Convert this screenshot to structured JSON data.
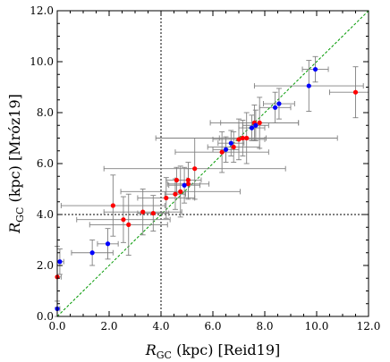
{
  "chart_data": {
    "type": "scatter",
    "xlabel": {
      "main": "R",
      "sub": "GC",
      "rest": " (kpc) [Reid19]"
    },
    "ylabel": {
      "main": "R",
      "sub": "GC",
      "rest": " (kpc) [Mróz19]"
    },
    "xlim": [
      0,
      12
    ],
    "ylim": [
      0,
      12
    ],
    "x_ticks": [
      "0.0",
      "2.0",
      "4.0",
      "6.0",
      "8.0",
      "10.0",
      "12.0"
    ],
    "y_ticks": [
      "0.0",
      "2.0",
      "4.0",
      "6.0",
      "8.0",
      "10.0",
      "12.0"
    ],
    "reference_lines": {
      "vertical_x": 4.0,
      "horizontal_y": 4.0,
      "identity": true
    },
    "colors": {
      "red": "#ff0000",
      "blue": "#0000ff",
      "errorbar": "#808080",
      "identity": "#009900",
      "reference": "#000000"
    },
    "series": [
      {
        "color": "red",
        "points": [
          {
            "x": 0.0,
            "y": 1.55,
            "xerr": 0.15,
            "yerr": 1.2
          },
          {
            "x": 2.15,
            "y": 4.35,
            "xerr": 2.0,
            "yerr": 1.2
          },
          {
            "x": 2.55,
            "y": 3.8,
            "xerr": 1.8,
            "yerr": 0.9
          },
          {
            "x": 2.75,
            "y": 3.6,
            "xerr": 1.5,
            "yerr": 1.2
          },
          {
            "x": 3.3,
            "y": 4.1,
            "xerr": 1.5,
            "yerr": 0.9
          },
          {
            "x": 3.7,
            "y": 4.05,
            "xerr": 0.6,
            "yerr": 0.7
          },
          {
            "x": 4.2,
            "y": 4.65,
            "xerr": 1.1,
            "yerr": 0.8
          },
          {
            "x": 4.55,
            "y": 4.8,
            "xerr": 0.4,
            "yerr": 0.6
          },
          {
            "x": 4.6,
            "y": 5.35,
            "xerr": 0.4,
            "yerr": 0.5
          },
          {
            "x": 4.75,
            "y": 4.9,
            "xerr": 2.3,
            "yerr": 1.0
          },
          {
            "x": 5.05,
            "y": 5.2,
            "xerr": 0.8,
            "yerr": 0.6
          },
          {
            "x": 5.05,
            "y": 5.35,
            "xerr": 0.5,
            "yerr": 0.7
          },
          {
            "x": 5.3,
            "y": 5.8,
            "xerr": 3.5,
            "yerr": 1.2
          },
          {
            "x": 6.35,
            "y": 6.45,
            "xerr": 1.8,
            "yerr": 0.8
          },
          {
            "x": 6.8,
            "y": 6.65,
            "xerr": 1.0,
            "yerr": 0.6
          },
          {
            "x": 7.0,
            "y": 6.95,
            "xerr": 1.0,
            "yerr": 0.8
          },
          {
            "x": 7.15,
            "y": 7.0,
            "xerr": 0.9,
            "yerr": 0.7
          },
          {
            "x": 7.3,
            "y": 7.0,
            "xerr": 3.5,
            "yerr": 1.0
          },
          {
            "x": 7.6,
            "y": 7.6,
            "xerr": 1.7,
            "yerr": 0.7
          },
          {
            "x": 7.8,
            "y": 7.6,
            "xerr": 1.5,
            "yerr": 1.0
          },
          {
            "x": 11.5,
            "y": 8.8,
            "xerr": 1.0,
            "yerr": 1.0
          }
        ]
      },
      {
        "color": "blue",
        "points": [
          {
            "x": 0.0,
            "y": 0.3,
            "xerr": 0.1,
            "yerr": 0.3
          },
          {
            "x": 0.1,
            "y": 2.15,
            "xerr": 0.15,
            "yerr": 0.5
          },
          {
            "x": 1.35,
            "y": 2.5,
            "xerr": 0.8,
            "yerr": 0.5
          },
          {
            "x": 1.95,
            "y": 2.85,
            "xerr": 0.4,
            "yerr": 0.6
          },
          {
            "x": 4.9,
            "y": 5.15,
            "xerr": 0.6,
            "yerr": 0.7
          },
          {
            "x": 6.5,
            "y": 6.55,
            "xerr": 0.5,
            "yerr": 0.5
          },
          {
            "x": 6.7,
            "y": 6.8,
            "xerr": 0.5,
            "yerr": 0.5
          },
          {
            "x": 7.5,
            "y": 7.4,
            "xerr": 0.5,
            "yerr": 0.5
          },
          {
            "x": 7.65,
            "y": 7.5,
            "xerr": 0.5,
            "yerr": 0.6
          },
          {
            "x": 8.4,
            "y": 8.2,
            "xerr": 0.6,
            "yerr": 0.6
          },
          {
            "x": 8.55,
            "y": 8.35,
            "xerr": 0.6,
            "yerr": 0.6
          },
          {
            "x": 9.7,
            "y": 9.05,
            "xerr": 2.1,
            "yerr": 1.0
          },
          {
            "x": 9.95,
            "y": 9.7,
            "xerr": 0.5,
            "yerr": 0.5
          }
        ]
      }
    ]
  }
}
